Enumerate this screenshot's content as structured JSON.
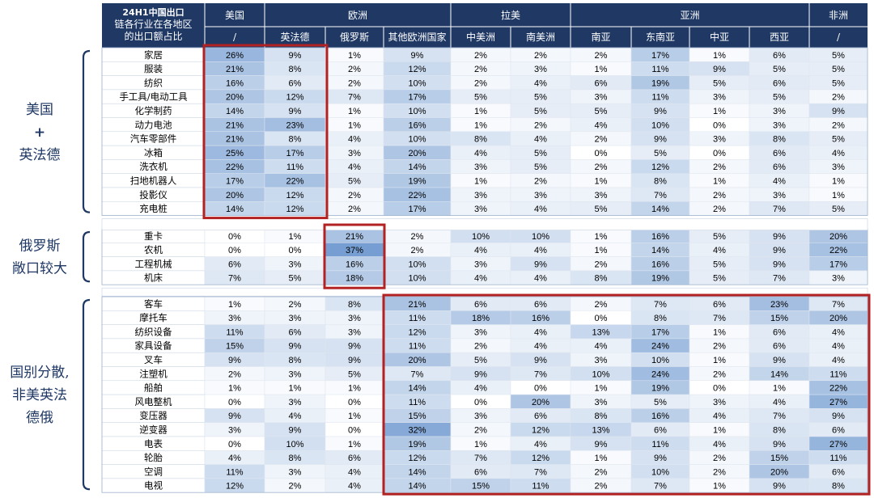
{
  "chart_data": {
    "type": "table",
    "corner_header": "24H1中国出口链各行业在各地区的出口额占比",
    "region_groups": [
      {
        "name": "美国",
        "span": 1
      },
      {
        "name": "欧洲",
        "span": 3
      },
      {
        "name": "拉美",
        "span": 2
      },
      {
        "name": "亚洲",
        "span": 4
      },
      {
        "name": "非洲",
        "span": 1
      }
    ],
    "columns": [
      "/",
      "英法德",
      "俄罗斯",
      "其他欧洲国家",
      "中美洲",
      "南美洲",
      "南亚",
      "东南亚",
      "中亚",
      "西亚",
      "/"
    ],
    "groups": [
      {
        "side_label": [
          "美国",
          "+",
          "英法德"
        ],
        "rows": [
          {
            "name": "家居",
            "values": [
              26,
              9,
              1,
              9,
              2,
              2,
              2,
              17,
              1,
              6,
              5
            ]
          },
          {
            "name": "服装",
            "values": [
              21,
              8,
              2,
              12,
              2,
              3,
              1,
              11,
              9,
              5,
              5
            ]
          },
          {
            "name": "纺织",
            "values": [
              16,
              6,
              2,
              10,
              2,
              4,
              6,
              19,
              5,
              6,
              5
            ]
          },
          {
            "name": "手工具/电动工具",
            "values": [
              20,
              12,
              7,
              17,
              5,
              5,
              3,
              11,
              3,
              5,
              2
            ]
          },
          {
            "name": "化学制药",
            "values": [
              14,
              9,
              1,
              10,
              1,
              5,
              5,
              9,
              1,
              3,
              9
            ]
          },
          {
            "name": "动力电池",
            "values": [
              21,
              23,
              1,
              16,
              1,
              2,
              4,
              10,
              0,
              3,
              2
            ]
          },
          {
            "name": "汽车零部件",
            "values": [
              21,
              8,
              4,
              10,
              8,
              4,
              2,
              9,
              3,
              8,
              5
            ]
          },
          {
            "name": "冰箱",
            "values": [
              25,
              17,
              3,
              20,
              4,
              5,
              0,
              5,
              0,
              6,
              4
            ]
          },
          {
            "name": "洗衣机",
            "values": [
              22,
              11,
              4,
              14,
              3,
              5,
              2,
              12,
              2,
              6,
              3
            ]
          },
          {
            "name": "扫地机器人",
            "values": [
              17,
              22,
              5,
              19,
              1,
              2,
              1,
              8,
              1,
              4,
              1
            ]
          },
          {
            "name": "投影仪",
            "values": [
              20,
              12,
              2,
              22,
              3,
              3,
              3,
              7,
              2,
              3,
              1
            ]
          },
          {
            "name": "充电桩",
            "values": [
              14,
              12,
              2,
              17,
              3,
              4,
              5,
              14,
              2,
              7,
              5
            ]
          }
        ]
      },
      {
        "side_label": [
          "俄罗斯",
          "敞口较大"
        ],
        "rows": [
          {
            "name": "重卡",
            "values": [
              0,
              1,
              21,
              2,
              10,
              10,
              1,
              16,
              5,
              9,
              20
            ]
          },
          {
            "name": "农机",
            "values": [
              0,
              0,
              37,
              2,
              4,
              4,
              1,
              14,
              4,
              9,
              22
            ]
          },
          {
            "name": "工程机械",
            "values": [
              6,
              3,
              16,
              10,
              3,
              9,
              2,
              16,
              5,
              9,
              17
            ]
          },
          {
            "name": "机床",
            "values": [
              7,
              5,
              18,
              10,
              4,
              4,
              8,
              19,
              5,
              7,
              3
            ]
          }
        ]
      },
      {
        "side_label": [
          "国别分散,",
          "非美英法",
          "德俄"
        ],
        "rows": [
          {
            "name": "客车",
            "values": [
              1,
              2,
              8,
              21,
              6,
              6,
              2,
              7,
              6,
              23,
              7
            ]
          },
          {
            "name": "摩托车",
            "values": [
              3,
              3,
              3,
              11,
              18,
              16,
              0,
              8,
              7,
              15,
              20
            ]
          },
          {
            "name": "纺织设备",
            "values": [
              11,
              6,
              3,
              12,
              3,
              4,
              13,
              17,
              1,
              6,
              4
            ]
          },
          {
            "name": "家具设备",
            "values": [
              15,
              9,
              9,
              11,
              2,
              4,
              4,
              24,
              2,
              6,
              4
            ]
          },
          {
            "name": "叉车",
            "values": [
              9,
              8,
              9,
              20,
              5,
              9,
              3,
              10,
              1,
              9,
              4
            ]
          },
          {
            "name": "注塑机",
            "values": [
              2,
              3,
              5,
              7,
              9,
              7,
              10,
              24,
              2,
              14,
              11
            ]
          },
          {
            "name": "船舶",
            "values": [
              1,
              1,
              1,
              14,
              4,
              0,
              1,
              19,
              0,
              1,
              22
            ]
          },
          {
            "name": "风电整机",
            "values": [
              0,
              3,
              0,
              11,
              0,
              20,
              3,
              5,
              3,
              4,
              27
            ]
          },
          {
            "name": "变压器",
            "values": [
              9,
              4,
              1,
              15,
              3,
              6,
              8,
              16,
              4,
              7,
              9
            ]
          },
          {
            "name": "逆变器",
            "values": [
              3,
              9,
              0,
              32,
              2,
              12,
              13,
              6,
              1,
              8,
              6
            ]
          },
          {
            "name": "电表",
            "values": [
              0,
              10,
              1,
              19,
              1,
              4,
              9,
              11,
              4,
              9,
              27
            ]
          },
          {
            "name": "轮胎",
            "values": [
              4,
              8,
              6,
              12,
              7,
              12,
              1,
              9,
              2,
              15,
              11
            ]
          },
          {
            "name": "空调",
            "values": [
              11,
              3,
              4,
              14,
              6,
              7,
              2,
              10,
              2,
              20,
              6
            ]
          },
          {
            "name": "电视",
            "values": [
              12,
              2,
              4,
              14,
              15,
              11,
              2,
              7,
              1,
              9,
              8
            ]
          }
        ]
      }
    ],
    "value_suffix": "%",
    "colors": {
      "header_bg": "#1f3864",
      "highlight_box": "#b22222",
      "bracket": "#1f3864",
      "heat_low": "#ffffff",
      "heat_high": "#7ea3d3"
    }
  }
}
